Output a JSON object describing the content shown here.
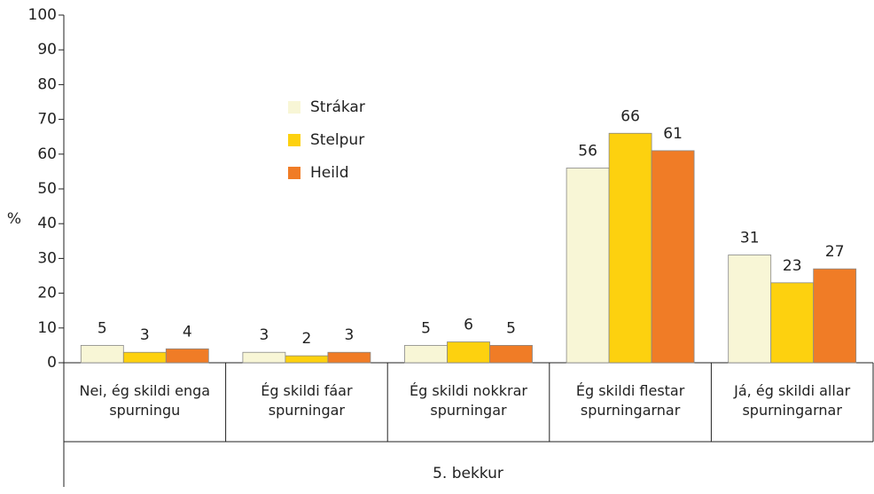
{
  "chart_data": {
    "type": "bar",
    "ylabel": "%",
    "group_label": "5. bekkur",
    "categories": [
      "Nei, ég skildi enga spurningu",
      "Ég skildi fáar spurningar",
      "Ég skildi nokkrar spurningar",
      "Ég skildi flestar spurningarnar",
      "Já, ég skildi allar spurningarnar"
    ],
    "series": [
      {
        "name": "Strákar",
        "color": "#f8f6d6",
        "values": [
          5,
          3,
          5,
          56,
          31
        ]
      },
      {
        "name": "Stelpur",
        "color": "#fdd10f",
        "values": [
          3,
          2,
          6,
          66,
          23
        ]
      },
      {
        "name": "Heild",
        "color": "#f07c26",
        "values": [
          4,
          3,
          5,
          61,
          27
        ]
      }
    ],
    "ylim": [
      0,
      100
    ],
    "yticks": [
      0,
      10,
      20,
      30,
      40,
      50,
      60,
      70,
      80,
      90,
      100
    ],
    "legend": "upper left"
  }
}
